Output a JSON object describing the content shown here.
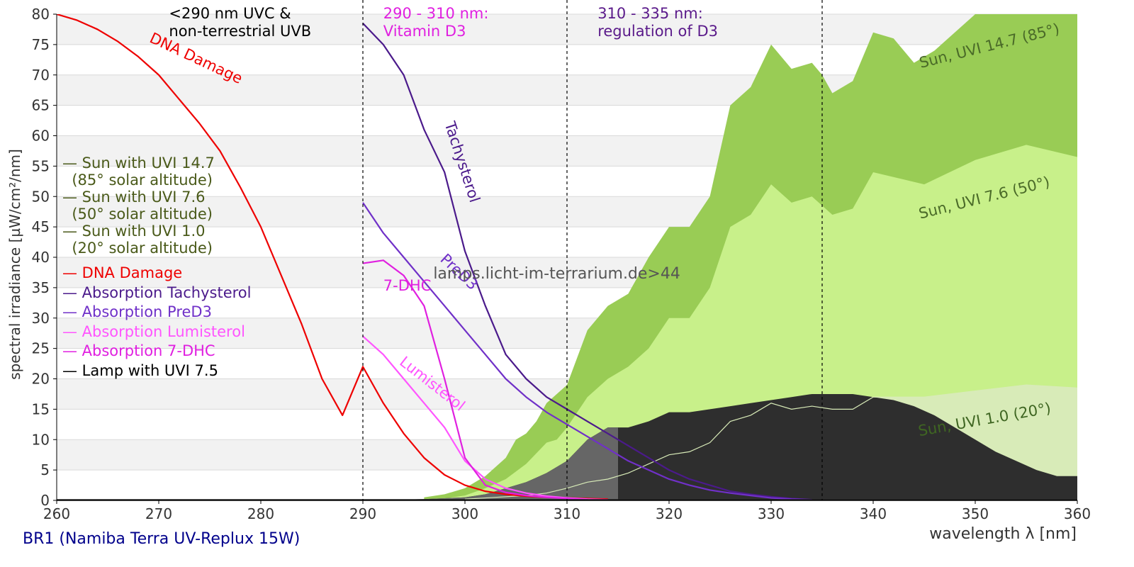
{
  "chart_data": {
    "type": "area",
    "xlabel": "wavelength λ [nm]",
    "ylabel": "spectral irradiance [µW/cm²/nm]",
    "xlim": [
      260,
      360
    ],
    "ylim": [
      0,
      80
    ],
    "x_ticks": [
      260,
      270,
      280,
      290,
      300,
      310,
      320,
      330,
      340,
      350,
      360
    ],
    "y_ticks": [
      0,
      5,
      10,
      15,
      20,
      25,
      30,
      35,
      40,
      45,
      50,
      55,
      60,
      65,
      70,
      75,
      80
    ],
    "grid": "horizontal bands",
    "vlines": [
      290,
      310,
      335
    ],
    "region_labels": [
      {
        "text": [
          "<290 nm UVC &",
          "non-terrestrial UVB"
        ],
        "x": 271,
        "color": "#000000"
      },
      {
        "text": [
          "290 - 310 nm:",
          "Vitamin D3"
        ],
        "x": 292,
        "color": "#e020e0"
      },
      {
        "text": [
          "310 - 335 nm:",
          "regulation of D3"
        ],
        "x": 313,
        "color": "#5a1a8a"
      }
    ],
    "series": [
      {
        "name": "Sun, UVI 14.7 (85°)",
        "kind": "area",
        "color": "#99cc55",
        "x": [
          296,
          298,
          300,
          302,
          304,
          305,
          306,
          307,
          308,
          310,
          312,
          314,
          316,
          318,
          320,
          322,
          324,
          326,
          328,
          330,
          332,
          334,
          335,
          336,
          338,
          340,
          342,
          344,
          346,
          348,
          350,
          352,
          354,
          356,
          358,
          360
        ],
        "y": [
          0.5,
          1,
          2,
          4,
          7,
          10,
          11,
          13,
          16,
          19,
          28,
          32,
          34,
          40,
          45,
          45,
          50,
          65,
          68,
          75,
          71,
          72,
          70,
          67,
          69,
          77,
          76,
          72,
          74,
          77,
          80,
          81,
          83,
          82,
          81,
          80
        ]
      },
      {
        "name": "Sun, UVI 7.6 (50°)",
        "kind": "area",
        "color": "#c8f08a",
        "x": [
          298,
          300,
          302,
          304,
          306,
          308,
          309,
          310,
          312,
          314,
          316,
          318,
          320,
          322,
          324,
          326,
          328,
          330,
          332,
          334,
          336,
          338,
          340,
          345,
          350,
          355,
          360
        ],
        "y": [
          0.3,
          0.8,
          2,
          3.5,
          6,
          9.5,
          10,
          12,
          17,
          20,
          22,
          25,
          30,
          30,
          35,
          45,
          47,
          52,
          49,
          50,
          47,
          48,
          54,
          52,
          56,
          58.5,
          56.5
        ]
      },
      {
        "name": "Sun, UVI 1.0 (20°)",
        "kind": "area",
        "color": "#d8ebb8",
        "x": [
          300,
          302,
          304,
          306,
          308,
          310,
          312,
          314,
          316,
          318,
          320,
          322,
          324,
          326,
          328,
          330,
          332,
          334,
          336,
          338,
          340,
          345,
          350,
          355,
          360
        ],
        "y": [
          0.2,
          0.4,
          0.6,
          0.8,
          1.2,
          2,
          3,
          3.5,
          4.5,
          6,
          7.5,
          8,
          9.5,
          13,
          14,
          16,
          15,
          15.5,
          15,
          15,
          17,
          17,
          18,
          19,
          18.5
        ]
      },
      {
        "name": "Lamp with UVI 7.5",
        "kind": "area",
        "color": "#2e2e2e",
        "x": [
          290,
          296,
          300,
          302,
          304,
          306,
          308,
          310,
          312,
          314,
          316,
          318,
          320,
          322,
          324,
          326,
          328,
          330,
          332,
          334,
          336,
          338,
          340,
          342,
          344,
          346,
          348,
          350,
          352,
          354,
          356,
          358,
          360
        ],
        "y": [
          0,
          0.2,
          0.5,
          1,
          2,
          3,
          4.5,
          6.5,
          10,
          12,
          12,
          13,
          14.5,
          14.5,
          15,
          15.5,
          16,
          16.5,
          17,
          17.5,
          17.5,
          17.5,
          17,
          16.5,
          15.5,
          14,
          12,
          10,
          8,
          6.5,
          5,
          4,
          4
        ]
      },
      {
        "name": "DNA Damage",
        "kind": "line",
        "color": "#ee0000",
        "x": [
          260,
          262,
          264,
          266,
          268,
          270,
          272,
          274,
          276,
          278,
          280,
          282,
          284,
          286,
          288,
          290,
          292,
          294,
          296,
          298,
          300,
          302,
          304,
          306,
          308,
          310,
          312,
          314
        ],
        "y": [
          80,
          79,
          77.5,
          75.5,
          73,
          70,
          66,
          62,
          57.5,
          51.5,
          45,
          37,
          29,
          20,
          14,
          22,
          16,
          11,
          7,
          4.2,
          2.5,
          1.5,
          1,
          0.7,
          0.5,
          0.4,
          0.3,
          0.2
        ]
      },
      {
        "name": "Absorption Tachysterol",
        "kind": "line",
        "color": "#4b1a8b",
        "x": [
          290,
          292,
          294,
          296,
          298,
          300,
          302,
          304,
          306,
          308,
          310,
          312,
          314,
          316,
          318,
          320,
          322,
          324,
          326,
          328,
          330,
          332,
          334
        ],
        "y": [
          78.5,
          75,
          70,
          61,
          54,
          41,
          32,
          24,
          20,
          17,
          15,
          13,
          11,
          9,
          7,
          5,
          3.5,
          2.5,
          1.5,
          1,
          0.6,
          0.3,
          0.1
        ]
      },
      {
        "name": "Absorption PreD3",
        "kind": "line",
        "color": "#7030c8",
        "x": [
          290,
          292,
          294,
          296,
          298,
          300,
          302,
          304,
          306,
          308,
          310,
          312,
          314,
          316,
          318,
          320,
          322,
          324,
          326,
          328,
          330,
          332,
          334
        ],
        "y": [
          49,
          44,
          40,
          36,
          32,
          28,
          24,
          20,
          17,
          14.5,
          12.5,
          10.5,
          8.5,
          6.5,
          5,
          3.5,
          2.5,
          1.7,
          1.2,
          0.8,
          0.4,
          0.2,
          0.1
        ]
      },
      {
        "name": "Absorption Lumisterol",
        "kind": "line",
        "color": "#ff55ff",
        "x": [
          290,
          292,
          294,
          296,
          298,
          300,
          302,
          304,
          306,
          308,
          310,
          312,
          314
        ],
        "y": [
          27,
          24,
          20,
          16,
          12,
          6.5,
          3.5,
          2,
          1.2,
          0.7,
          0.4,
          0.2,
          0.1
        ]
      },
      {
        "name": "Absorption 7-DHC",
        "kind": "line",
        "color": "#e020e0",
        "x": [
          290,
          292,
          294,
          296,
          298,
          300,
          302,
          304,
          306,
          308,
          310,
          312
        ],
        "y": [
          39,
          39.5,
          37,
          32,
          20,
          7,
          2.5,
          1.3,
          0.8,
          0.5,
          0.3,
          0.1
        ]
      }
    ],
    "curve_labels": [
      {
        "text": "DNA Damage",
        "x": 269,
        "y": 75.5,
        "angle": 25,
        "color": "#ee0000"
      },
      {
        "text": "Tachysterol",
        "x": 298,
        "y": 62,
        "angle": 72,
        "color": "#4b1a8b"
      },
      {
        "text": "PreD3",
        "x": 297.5,
        "y": 39.5,
        "angle": 43,
        "color": "#7030c8"
      },
      {
        "text": "7-DHC",
        "x": 292,
        "y": 34.5,
        "angle": 0,
        "color": "#e020e0"
      },
      {
        "text": "Lumisterol",
        "x": 293.5,
        "y": 22.5,
        "angle": 38,
        "color": "#ff55ff"
      },
      {
        "text": "Sun, UVI 14.7 (85°)",
        "x": 351.5,
        "y": 74,
        "angle": -14,
        "color": "#4a6a28"
      },
      {
        "text": "Sun, UVI 7.6 (50°)",
        "x": 351,
        "y": 49,
        "angle": -14,
        "color": "#4a6a28"
      },
      {
        "text": "Sun, UVI 1.0 (20°)",
        "x": 351,
        "y": 12.5,
        "angle": -10,
        "color": "#3f6622"
      }
    ],
    "annotations": [
      {
        "text": "lamps.licht-im-terrarium.de>44",
        "x": 309,
        "y": 36.5,
        "color": "#555555"
      }
    ],
    "legend": "left",
    "colors": {
      "band": "#f2f2f2",
      "grid": "#d9d9d9",
      "axis": "#000000",
      "tick_text": "#333333"
    }
  },
  "legend": {
    "items": [
      {
        "label": "— Sun with UVI 14.7",
        "sub": "  (85° solar altitude)",
        "color": "#4a5a1a"
      },
      {
        "label": "— Sun with UVI 7.6",
        "sub": "  (50° solar altitude)",
        "color": "#4a5a1a"
      },
      {
        "label": "— Sun with UVI 1.0",
        "sub": "  (20° solar altitude)",
        "color": "#4a5a1a"
      },
      {
        "label": "— DNA Damage",
        "color": "#ee0000"
      },
      {
        "label": "— Absorption Tachysterol",
        "color": "#4b1a8b"
      },
      {
        "label": "— Absorption PreD3",
        "color": "#7030c8"
      },
      {
        "label": "— Absorption Lumisterol",
        "color": "#ff55ff"
      },
      {
        "label": "— Absorption 7-DHC",
        "color": "#e020e0"
      },
      {
        "label": "— Lamp with UVI 7.5",
        "color": "#000000"
      }
    ]
  },
  "footer": {
    "lamp_label": "BR1 (Namiba Terra UV-Replux 15W)"
  }
}
